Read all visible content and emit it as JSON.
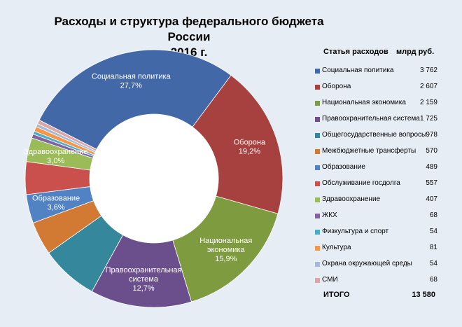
{
  "title_line1": "Расходы и структура федерального бюджета России",
  "title_line2": "2016 г.",
  "legend": {
    "col_item": "Статья расходов",
    "col_value": "млрд руб.",
    "total_label": "ИТОГО",
    "total_value": "13 580"
  },
  "chart_data": {
    "type": "pie",
    "categories": [
      "Социальная политика",
      "Оборона",
      "Национальная экономика",
      "Правоохранительная система",
      "Общегосударственные вопросы",
      "Межбюджетные трансферты",
      "Образование",
      "Обслуживание госдолга",
      "Здравоохранение",
      "ЖКХ",
      "Физкультура и спорт",
      "Культура",
      "Охрана окружающей среды",
      "СМИ"
    ],
    "values": [
      3762,
      2607,
      2159,
      1725,
      978,
      570,
      489,
      557,
      407,
      68,
      54,
      81,
      54,
      68
    ],
    "value_labels": [
      "3 762",
      "2 607",
      "2 159",
      "1 725",
      "978",
      "570",
      "489",
      "557",
      "407",
      "68",
      "54",
      "81",
      "54",
      "68"
    ],
    "colors": [
      "#4268a8",
      "#a6413f",
      "#7f9b40",
      "#6a4f8c",
      "#35879b",
      "#d27a33",
      "#5082c4",
      "#c9504d",
      "#9bbb59",
      "#8064a2",
      "#4bacc6",
      "#f79646",
      "#a7b9d8",
      "#d9a7a6"
    ],
    "slice_labels": [
      {
        "index": 0,
        "lines": [
          "Социальная политика",
          "27,7%"
        ],
        "color": "#ffffff"
      },
      {
        "index": 1,
        "lines": [
          "Оборона",
          "19,2%"
        ],
        "color": "#ffffff"
      },
      {
        "index": 2,
        "lines": [
          "Национальная",
          "экономика",
          "15,9%"
        ],
        "color": "#ffffff"
      },
      {
        "index": 3,
        "lines": [
          "Правоохранительная",
          "система",
          "12,7%"
        ],
        "color": "#ffffff"
      },
      {
        "index": 8,
        "lines": [
          "Здравоохранение",
          "3,0%"
        ],
        "color": "#ffffff"
      },
      {
        "index": 6,
        "lines": [
          "Образование",
          "3,6%"
        ],
        "color": "#ffffff"
      }
    ]
  }
}
